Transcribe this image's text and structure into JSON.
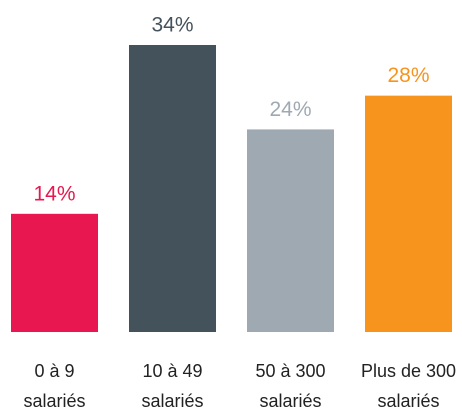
{
  "chart_data": {
    "type": "bar",
    "categories": [
      "0 à 9 salariés",
      "10 à 49 salariés",
      "50 à 300 salariés",
      "Plus de 300 salariés"
    ],
    "values": [
      14,
      34,
      24,
      28
    ],
    "value_labels": [
      "14%",
      "34%",
      "24%",
      "28%"
    ],
    "colors": [
      "#e8174f",
      "#44525c",
      "#9fa9b2",
      "#f7941d"
    ],
    "ylim": [
      0,
      34
    ]
  }
}
